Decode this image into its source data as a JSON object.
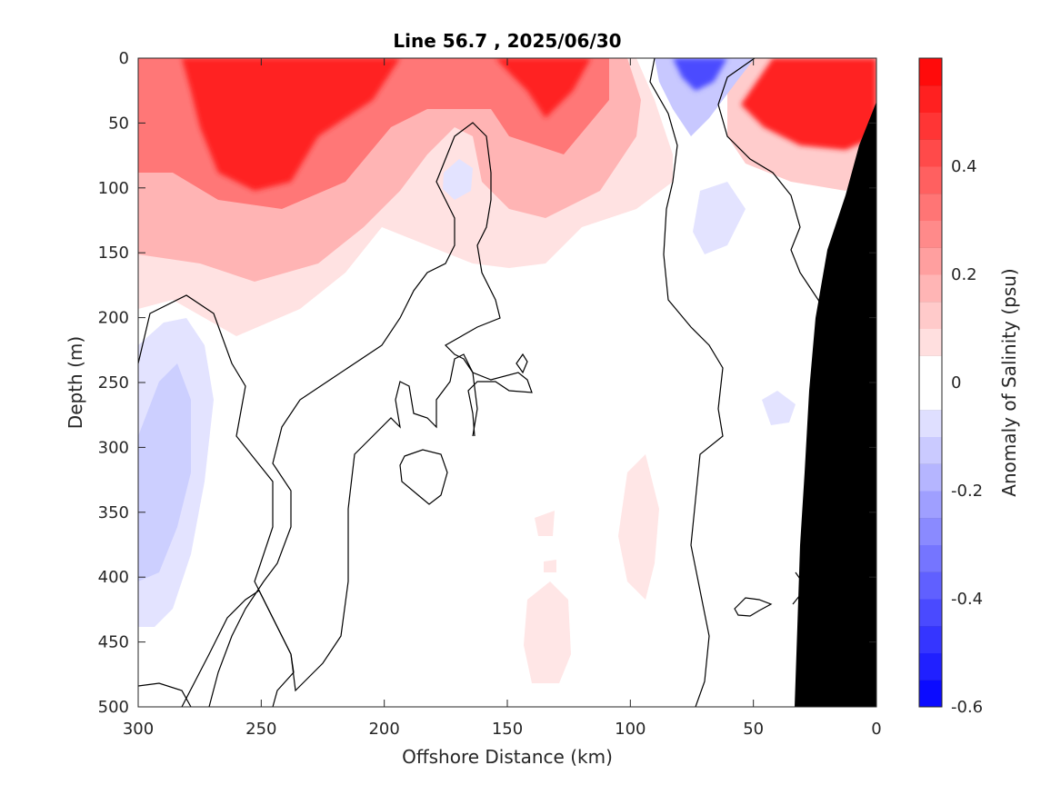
{
  "chart_data": {
    "type": "heatmap",
    "subtype": "filled contour section",
    "title": "Line 56.7 , 2025/06/30",
    "xlabel": "Offshore Distance (km)",
    "ylabel": "Depth (m)",
    "x_ticks": [
      "300",
      "250",
      "200",
      "150",
      "100",
      "50",
      "0"
    ],
    "y_ticks": [
      "0",
      "50",
      "100",
      "150",
      "200",
      "250",
      "300",
      "350",
      "400",
      "450",
      "500"
    ],
    "xlim": [
      300,
      0
    ],
    "ylim": [
      0,
      500
    ],
    "x_reversed": true,
    "y_reversed": true,
    "colorbar": {
      "label": "Anomaly of Salinity (psu)",
      "ticks": [
        "-0.6",
        "-0.4",
        "-0.2",
        "0",
        "0.2",
        "0.4"
      ],
      "range": [
        -0.6,
        0.6
      ],
      "step": 0.05,
      "negative_color": "#0000ff",
      "positive_color": "#ff0000",
      "zero_color": "#ffffff"
    },
    "bathymetry_color": "#000000",
    "features": [
      {
        "kind": "positive anomaly core",
        "x_km": 255,
        "depth_m": 75,
        "anomaly": 0.55
      },
      {
        "kind": "positive anomaly core",
        "x_km": 135,
        "depth_m": 10,
        "anomaly": 0.55
      },
      {
        "kind": "positive anomaly core",
        "x_km": 20,
        "depth_m": 30,
        "anomaly": 0.6
      },
      {
        "kind": "negative anomaly core",
        "x_km": 72,
        "depth_m": 10,
        "anomaly": -0.3
      },
      {
        "kind": "negative anomaly core",
        "x_km": 285,
        "depth_m": 310,
        "anomaly": -0.2
      }
    ]
  }
}
